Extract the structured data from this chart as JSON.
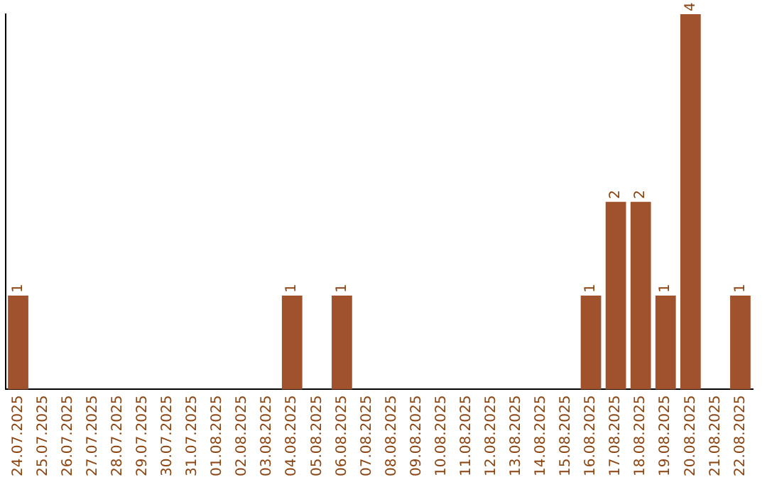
{
  "chart_data": {
    "type": "bar",
    "categories": [
      "24.07.2025",
      "25.07.2025",
      "26.07.2025",
      "27.07.2025",
      "28.07.2025",
      "29.07.2025",
      "30.07.2025",
      "31.07.2025",
      "01.08.2025",
      "02.08.2025",
      "03.08.2025",
      "04.08.2025",
      "05.08.2025",
      "06.08.2025",
      "07.08.2025",
      "08.08.2025",
      "09.08.2025",
      "10.08.2025",
      "11.08.2025",
      "12.08.2025",
      "13.08.2025",
      "14.08.2025",
      "15.08.2025",
      "16.08.2025",
      "17.08.2025",
      "18.08.2025",
      "19.08.2025",
      "20.08.2025",
      "21.08.2025",
      "22.08.2025"
    ],
    "values": [
      1,
      0,
      0,
      0,
      0,
      0,
      0,
      0,
      0,
      0,
      0,
      1,
      0,
      1,
      0,
      0,
      0,
      0,
      0,
      0,
      0,
      0,
      0,
      1,
      2,
      2,
      1,
      4,
      0,
      1
    ],
    "value_labels": [
      "1",
      null,
      null,
      null,
      null,
      null,
      null,
      null,
      null,
      null,
      null,
      "1",
      null,
      "1",
      null,
      null,
      null,
      null,
      null,
      null,
      null,
      null,
      null,
      "1",
      "2",
      "2",
      "1",
      "4",
      null,
      "1"
    ],
    "color": "#a0522d",
    "ylim": [
      0,
      4
    ],
    "grid": false,
    "legend": false,
    "tick_labels": "x"
  }
}
